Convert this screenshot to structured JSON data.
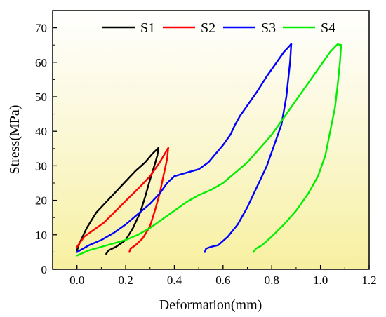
{
  "chart_data": {
    "type": "line",
    "title": "",
    "xlabel": "Deformation(mm)",
    "ylabel": "Stress(MPa)",
    "xlim": [
      -0.1,
      1.2
    ],
    "ylim": [
      0,
      75
    ],
    "x_ticks": [
      "0.0",
      "0.2",
      "0.4",
      "0.6",
      "0.8",
      "1.0",
      "1.2"
    ],
    "y_ticks": [
      "0",
      "10",
      "20",
      "30",
      "40",
      "50",
      "60",
      "70"
    ],
    "x_tick_values": [
      0,
      0.2,
      0.4,
      0.6,
      0.8,
      1.0,
      1.2
    ],
    "y_tick_values": [
      0,
      10,
      20,
      30,
      40,
      50,
      60,
      70
    ],
    "legend_position": "top",
    "background": "gradient yellow (bottom) to white (top)",
    "series": [
      {
        "name": "S1",
        "color": "#000000",
        "points": [
          [
            0.0,
            5.5
          ],
          [
            0.01,
            7.5
          ],
          [
            0.04,
            12
          ],
          [
            0.08,
            16.5
          ],
          [
            0.12,
            19.5
          ],
          [
            0.16,
            22.5
          ],
          [
            0.2,
            25.5
          ],
          [
            0.24,
            28.5
          ],
          [
            0.28,
            31
          ],
          [
            0.31,
            33.5
          ],
          [
            0.335,
            35.2
          ],
          [
            0.33,
            33
          ],
          [
            0.32,
            30.5
          ],
          [
            0.3,
            26
          ],
          [
            0.28,
            21
          ],
          [
            0.26,
            16.5
          ],
          [
            0.23,
            12
          ],
          [
            0.2,
            8.5
          ],
          [
            0.16,
            6.5
          ],
          [
            0.13,
            5.5
          ],
          [
            0.12,
            4.5
          ]
        ]
      },
      {
        "name": "S2",
        "color": "#ff0000",
        "points": [
          [
            0.0,
            6.5
          ],
          [
            0.03,
            9.5
          ],
          [
            0.07,
            11.5
          ],
          [
            0.11,
            13.5
          ],
          [
            0.16,
            17
          ],
          [
            0.21,
            20.5
          ],
          [
            0.26,
            24
          ],
          [
            0.3,
            27
          ],
          [
            0.34,
            31
          ],
          [
            0.365,
            34
          ],
          [
            0.375,
            35.2
          ],
          [
            0.37,
            32
          ],
          [
            0.355,
            27
          ],
          [
            0.34,
            22
          ],
          [
            0.32,
            17
          ],
          [
            0.3,
            12.5
          ],
          [
            0.27,
            9
          ],
          [
            0.24,
            7
          ],
          [
            0.22,
            6
          ],
          [
            0.215,
            5
          ]
        ]
      },
      {
        "name": "S3",
        "color": "#0000ff",
        "points": [
          [
            0.0,
            5
          ],
          [
            0.05,
            7
          ],
          [
            0.1,
            8.5
          ],
          [
            0.15,
            10.5
          ],
          [
            0.2,
            13
          ],
          [
            0.25,
            16
          ],
          [
            0.3,
            19
          ],
          [
            0.34,
            22
          ],
          [
            0.37,
            25
          ],
          [
            0.4,
            27
          ],
          [
            0.45,
            28
          ],
          [
            0.5,
            29
          ],
          [
            0.54,
            31
          ],
          [
            0.57,
            33.5
          ],
          [
            0.6,
            36
          ],
          [
            0.63,
            39
          ],
          [
            0.65,
            42
          ],
          [
            0.67,
            44.5
          ],
          [
            0.7,
            47.5
          ],
          [
            0.74,
            51.5
          ],
          [
            0.78,
            56
          ],
          [
            0.82,
            60
          ],
          [
            0.85,
            63
          ],
          [
            0.87,
            64.5
          ],
          [
            0.88,
            65.3
          ],
          [
            0.875,
            60
          ],
          [
            0.86,
            50
          ],
          [
            0.84,
            42
          ],
          [
            0.81,
            36
          ],
          [
            0.78,
            30
          ],
          [
            0.74,
            24
          ],
          [
            0.7,
            18
          ],
          [
            0.66,
            13
          ],
          [
            0.62,
            9.5
          ],
          [
            0.58,
            7
          ],
          [
            0.55,
            6.5
          ],
          [
            0.53,
            6
          ],
          [
            0.525,
            5
          ]
        ]
      },
      {
        "name": "S4",
        "color": "#00ee00",
        "points": [
          [
            0.0,
            4
          ],
          [
            0.05,
            5.5
          ],
          [
            0.1,
            6.5
          ],
          [
            0.15,
            7.5
          ],
          [
            0.2,
            8.5
          ],
          [
            0.25,
            10
          ],
          [
            0.3,
            12
          ],
          [
            0.35,
            14.5
          ],
          [
            0.4,
            17
          ],
          [
            0.45,
            19.5
          ],
          [
            0.5,
            21.5
          ],
          [
            0.55,
            23
          ],
          [
            0.6,
            25
          ],
          [
            0.65,
            28
          ],
          [
            0.7,
            31
          ],
          [
            0.75,
            35
          ],
          [
            0.8,
            39
          ],
          [
            0.85,
            44
          ],
          [
            0.9,
            49
          ],
          [
            0.95,
            54
          ],
          [
            1.0,
            59
          ],
          [
            1.04,
            63
          ],
          [
            1.07,
            65.2
          ],
          [
            1.085,
            65
          ],
          [
            1.08,
            60
          ],
          [
            1.07,
            53
          ],
          [
            1.06,
            47
          ],
          [
            1.04,
            40
          ],
          [
            1.02,
            33
          ],
          [
            0.99,
            27
          ],
          [
            0.95,
            22
          ],
          [
            0.9,
            17
          ],
          [
            0.85,
            13
          ],
          [
            0.8,
            9.5
          ],
          [
            0.76,
            7
          ],
          [
            0.735,
            6
          ],
          [
            0.725,
            5
          ]
        ]
      }
    ]
  }
}
